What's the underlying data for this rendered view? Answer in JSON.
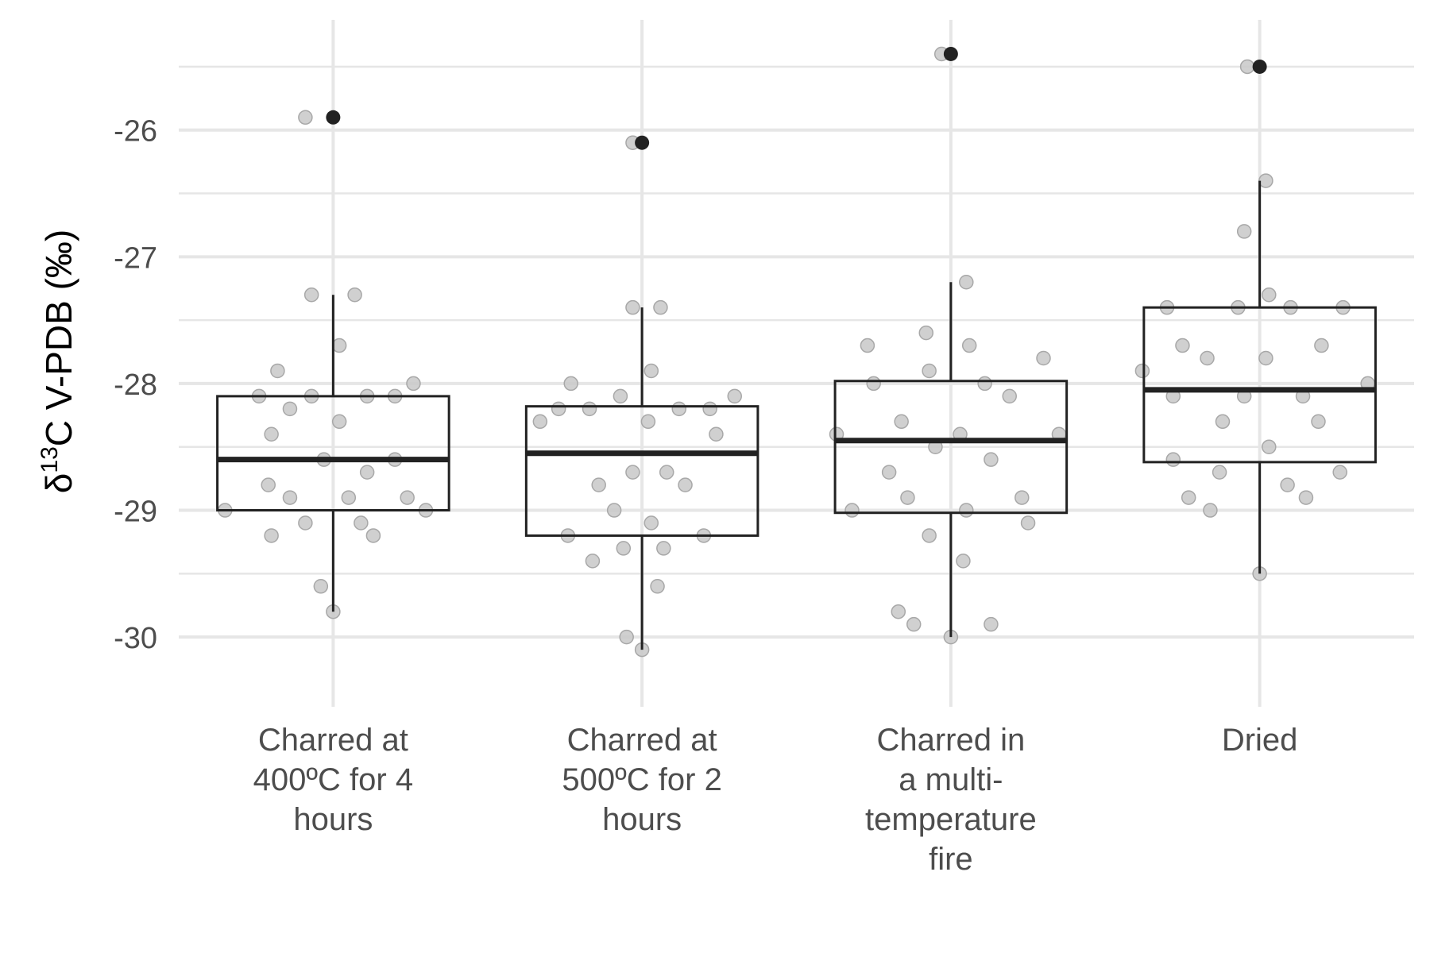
{
  "chart_data": {
    "type": "box",
    "ylabel": {
      "prefix": "δ",
      "superscript": "13",
      "rest": "C V-PDB (‰)"
    },
    "ylim": [
      -30.3,
      -25.35
    ],
    "yticks": [
      -26,
      -27,
      -28,
      -29,
      -30
    ],
    "ytick_labels": [
      "-26",
      "-27",
      "-28",
      "-29",
      "-30"
    ],
    "grid": true,
    "legend": "none",
    "colors": {
      "box": "#222222",
      "jitter_point": "#c8c8c8",
      "outlier": "#222222",
      "grid": "#e6e6e6"
    },
    "categories": [
      {
        "label_lines": [
          "Charred at",
          "400ºC for 4",
          "hours"
        ],
        "box": {
          "q1": -29.0,
          "median": -28.6,
          "q3": -28.1,
          "whisker_low": -29.8,
          "whisker_high": -27.3
        },
        "outliers": [
          -25.9
        ],
        "points": [
          {
            "x": -0.09,
            "y": -25.9
          },
          {
            "x": -0.07,
            "y": -27.3
          },
          {
            "x": 0.07,
            "y": -27.3
          },
          {
            "x": 0.02,
            "y": -27.7
          },
          {
            "x": -0.18,
            "y": -27.9
          },
          {
            "x": -0.24,
            "y": -28.1
          },
          {
            "x": -0.07,
            "y": -28.1
          },
          {
            "x": 0.11,
            "y": -28.1
          },
          {
            "x": 0.2,
            "y": -28.1
          },
          {
            "x": 0.26,
            "y": -28.0
          },
          {
            "x": -0.14,
            "y": -28.2
          },
          {
            "x": 0.02,
            "y": -28.3
          },
          {
            "x": -0.2,
            "y": -28.4
          },
          {
            "x": -0.03,
            "y": -28.6
          },
          {
            "x": 0.2,
            "y": -28.6
          },
          {
            "x": 0.11,
            "y": -28.7
          },
          {
            "x": -0.21,
            "y": -28.8
          },
          {
            "x": -0.14,
            "y": -28.9
          },
          {
            "x": 0.05,
            "y": -28.9
          },
          {
            "x": 0.24,
            "y": -28.9
          },
          {
            "x": -0.35,
            "y": -29.0
          },
          {
            "x": 0.3,
            "y": -29.0
          },
          {
            "x": -0.09,
            "y": -29.1
          },
          {
            "x": 0.09,
            "y": -29.1
          },
          {
            "x": -0.2,
            "y": -29.2
          },
          {
            "x": 0.13,
            "y": -29.2
          },
          {
            "x": -0.04,
            "y": -29.6
          },
          {
            "x": 0.0,
            "y": -29.8
          }
        ]
      },
      {
        "label_lines": [
          "Charred at",
          "500ºC for 2",
          "hours"
        ],
        "box": {
          "q1": -29.2,
          "median": -28.55,
          "q3": -28.18,
          "whisker_low": -30.1,
          "whisker_high": -27.4
        },
        "outliers": [
          -26.1
        ],
        "points": [
          {
            "x": -0.03,
            "y": -26.1
          },
          {
            "x": -0.03,
            "y": -27.4
          },
          {
            "x": 0.06,
            "y": -27.4
          },
          {
            "x": 0.03,
            "y": -27.9
          },
          {
            "x": -0.23,
            "y": -28.0
          },
          {
            "x": -0.07,
            "y": -28.1
          },
          {
            "x": 0.3,
            "y": -28.1
          },
          {
            "x": -0.27,
            "y": -28.2
          },
          {
            "x": -0.17,
            "y": -28.2
          },
          {
            "x": 0.12,
            "y": -28.2
          },
          {
            "x": 0.22,
            "y": -28.2
          },
          {
            "x": 0.02,
            "y": -28.3
          },
          {
            "x": -0.33,
            "y": -28.3
          },
          {
            "x": 0.24,
            "y": -28.4
          },
          {
            "x": -0.03,
            "y": -28.7
          },
          {
            "x": 0.08,
            "y": -28.7
          },
          {
            "x": -0.14,
            "y": -28.8
          },
          {
            "x": 0.14,
            "y": -28.8
          },
          {
            "x": -0.09,
            "y": -29.0
          },
          {
            "x": 0.03,
            "y": -29.1
          },
          {
            "x": -0.24,
            "y": -29.2
          },
          {
            "x": 0.2,
            "y": -29.2
          },
          {
            "x": -0.06,
            "y": -29.3
          },
          {
            "x": 0.07,
            "y": -29.3
          },
          {
            "x": -0.16,
            "y": -29.4
          },
          {
            "x": 0.05,
            "y": -29.6
          },
          {
            "x": -0.05,
            "y": -30.0
          },
          {
            "x": 0.0,
            "y": -30.1
          }
        ]
      },
      {
        "label_lines": [
          "Charred in",
          "a multi-",
          "temperature",
          "fire"
        ],
        "box": {
          "q1": -29.02,
          "median": -28.45,
          "q3": -27.98,
          "whisker_low": -30.0,
          "whisker_high": -27.2
        },
        "outliers": [
          -25.4
        ],
        "points": [
          {
            "x": -0.03,
            "y": -25.4
          },
          {
            "x": 0.05,
            "y": -27.2
          },
          {
            "x": -0.27,
            "y": -27.7
          },
          {
            "x": 0.06,
            "y": -27.7
          },
          {
            "x": 0.3,
            "y": -27.8
          },
          {
            "x": -0.08,
            "y": -27.6
          },
          {
            "x": -0.07,
            "y": -27.9
          },
          {
            "x": -0.25,
            "y": -28.0
          },
          {
            "x": 0.11,
            "y": -28.0
          },
          {
            "x": 0.19,
            "y": -28.1
          },
          {
            "x": -0.16,
            "y": -28.3
          },
          {
            "x": -0.37,
            "y": -28.4
          },
          {
            "x": 0.03,
            "y": -28.4
          },
          {
            "x": 0.35,
            "y": -28.4
          },
          {
            "x": -0.05,
            "y": -28.5
          },
          {
            "x": 0.13,
            "y": -28.6
          },
          {
            "x": -0.2,
            "y": -28.7
          },
          {
            "x": -0.14,
            "y": -28.9
          },
          {
            "x": 0.23,
            "y": -28.9
          },
          {
            "x": -0.32,
            "y": -29.0
          },
          {
            "x": 0.05,
            "y": -29.0
          },
          {
            "x": 0.25,
            "y": -29.1
          },
          {
            "x": -0.07,
            "y": -29.2
          },
          {
            "x": 0.04,
            "y": -29.4
          },
          {
            "x": -0.17,
            "y": -29.8
          },
          {
            "x": -0.12,
            "y": -29.9
          },
          {
            "x": 0.13,
            "y": -29.9
          },
          {
            "x": 0.0,
            "y": -30.0
          }
        ]
      },
      {
        "label_lines": [
          "Dried"
        ],
        "box": {
          "q1": -28.62,
          "median": -28.05,
          "q3": -27.4,
          "whisker_low": -29.5,
          "whisker_high": -26.4
        },
        "outliers": [
          -25.5
        ],
        "points": [
          {
            "x": -0.04,
            "y": -25.5
          },
          {
            "x": 0.02,
            "y": -26.4
          },
          {
            "x": -0.05,
            "y": -26.8
          },
          {
            "x": -0.3,
            "y": -27.4
          },
          {
            "x": -0.07,
            "y": -27.4
          },
          {
            "x": 0.1,
            "y": -27.4
          },
          {
            "x": 0.27,
            "y": -27.4
          },
          {
            "x": 0.03,
            "y": -27.3
          },
          {
            "x": -0.25,
            "y": -27.7
          },
          {
            "x": 0.2,
            "y": -27.7
          },
          {
            "x": -0.17,
            "y": -27.8
          },
          {
            "x": 0.02,
            "y": -27.8
          },
          {
            "x": -0.38,
            "y": -27.9
          },
          {
            "x": 0.35,
            "y": -28.0
          },
          {
            "x": -0.28,
            "y": -28.1
          },
          {
            "x": -0.05,
            "y": -28.1
          },
          {
            "x": 0.14,
            "y": -28.1
          },
          {
            "x": -0.12,
            "y": -28.3
          },
          {
            "x": 0.19,
            "y": -28.3
          },
          {
            "x": 0.03,
            "y": -28.5
          },
          {
            "x": -0.28,
            "y": -28.6
          },
          {
            "x": -0.13,
            "y": -28.7
          },
          {
            "x": 0.26,
            "y": -28.7
          },
          {
            "x": 0.09,
            "y": -28.8
          },
          {
            "x": -0.23,
            "y": -28.9
          },
          {
            "x": 0.15,
            "y": -28.9
          },
          {
            "x": -0.16,
            "y": -29.0
          },
          {
            "x": 0.0,
            "y": -29.5
          }
        ]
      }
    ]
  }
}
